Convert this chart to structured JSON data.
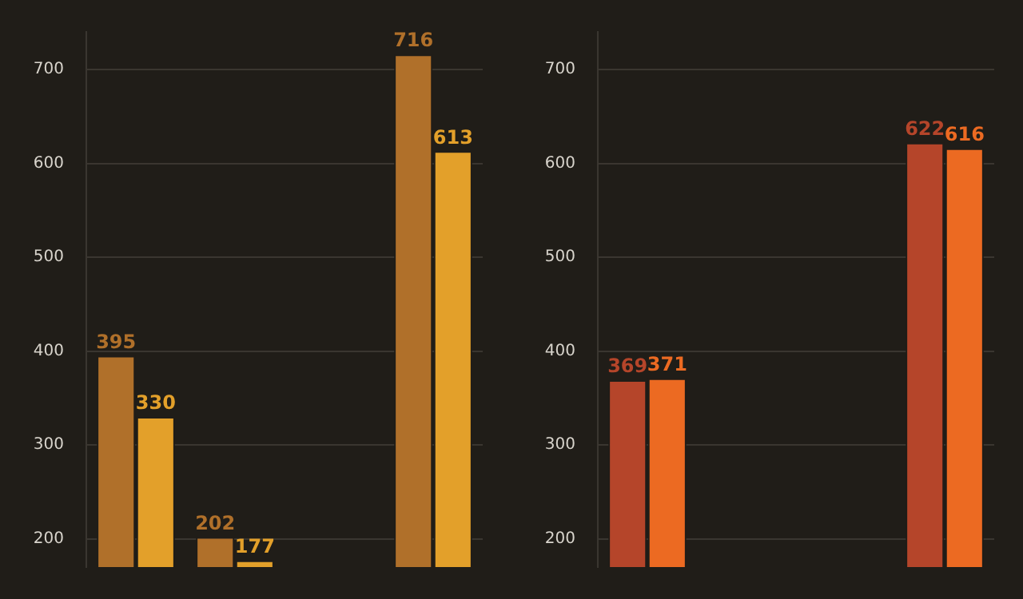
{
  "chart_data": [
    {
      "type": "bar",
      "categories": [
        null,
        null,
        null,
        null
      ],
      "series": [
        {
          "color": "#b0702a",
          "values": [
            395,
            202,
            null,
            716
          ]
        },
        {
          "color": "#e3a02a",
          "values": [
            330,
            177,
            null,
            613
          ]
        }
      ],
      "ylim": [
        170,
        740
      ],
      "yticks": [
        200,
        300,
        400,
        500,
        600,
        700
      ],
      "grid": "y",
      "tick_labels": "y",
      "data_labels": true
    },
    {
      "type": "bar",
      "categories": [
        null,
        null,
        null,
        null
      ],
      "series": [
        {
          "color": "#b5452a",
          "values": [
            369,
            null,
            null,
            622
          ]
        },
        {
          "color": "#ec6a22",
          "values": [
            371,
            null,
            null,
            616
          ]
        }
      ],
      "ylim": [
        170,
        740
      ],
      "yticks": [
        200,
        300,
        400,
        500,
        600,
        700
      ],
      "grid": "y",
      "tick_labels": "y",
      "data_labels": true
    }
  ]
}
